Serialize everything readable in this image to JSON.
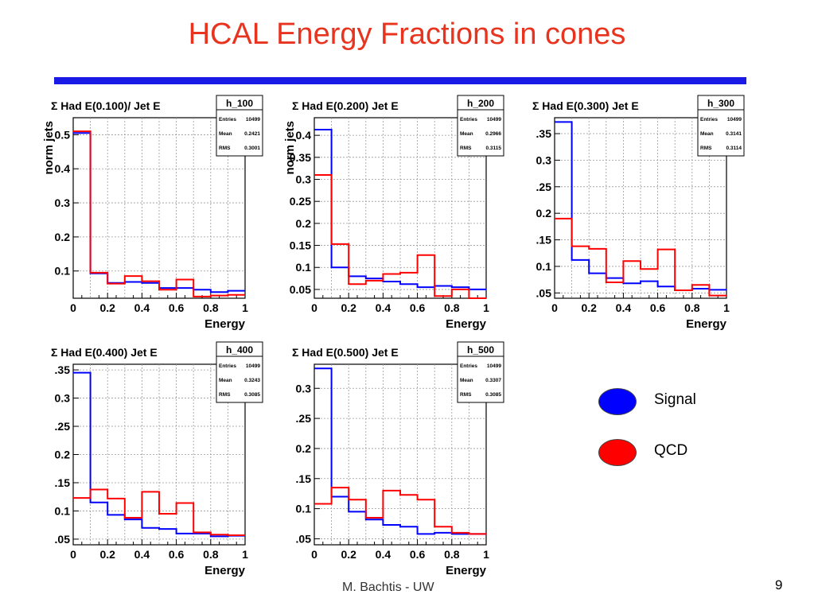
{
  "slide": {
    "title": "HCAL Energy Fractions in cones",
    "footer": "M. Bachtis - UW",
    "page_number": "9"
  },
  "legend": [
    {
      "label": "Signal",
      "color": "#0000ff"
    },
    {
      "label": "QCD",
      "color": "#ff0000"
    }
  ],
  "chart_data": [
    {
      "type": "histogram",
      "title": "Σ Had E(0.100)/ Jet E",
      "stats": {
        "name": "h_100",
        "entries_label": "Entries",
        "entries": "10499",
        "mean_label": "Mean",
        "mean": "0.2421",
        "rms_label": "RMS",
        "rms": "0.3001"
      },
      "xlabel": "Energy",
      "ylabel": "norm jets",
      "xlim": [
        0,
        1
      ],
      "ylim": [
        0.02,
        0.55
      ],
      "xticks": [
        "0",
        "0.2",
        "0.4",
        "0.6",
        "0.8",
        "1"
      ],
      "yticks": [
        {
          "v": 0.1,
          "label": "0.1"
        },
        {
          "v": 0.2,
          "label": "0.2"
        },
        {
          "v": 0.3,
          "label": "0.3"
        },
        {
          "v": 0.4,
          "label": "0.4"
        },
        {
          "v": 0.5,
          "label": "0.5"
        }
      ],
      "bins": [
        0,
        0.1,
        0.2,
        0.3,
        0.4,
        0.5,
        0.6,
        0.7,
        0.8,
        0.9,
        1.0
      ],
      "series": [
        {
          "color": "#0000ff",
          "values": [
            0.505,
            0.093,
            0.065,
            0.068,
            0.065,
            0.05,
            0.05,
            0.045,
            0.038,
            0.042
          ]
        },
        {
          "color": "#ff0000",
          "values": [
            0.51,
            0.095,
            0.063,
            0.085,
            0.07,
            0.045,
            0.075,
            0.025,
            0.028,
            0.03
          ]
        }
      ]
    },
    {
      "type": "histogram",
      "title": "Σ Had E(0.200) Jet E",
      "stats": {
        "name": "h_200",
        "entries_label": "Entries",
        "entries": "10499",
        "mean_label": "Mean",
        "mean": "0.2966",
        "rms_label": "RMS",
        "rms": "0.3115"
      },
      "xlabel": "Energy",
      "ylabel": "norm jets",
      "xlim": [
        0,
        1
      ],
      "ylim": [
        0.03,
        0.44
      ],
      "xticks": [
        "0",
        "0.2",
        "0.4",
        "0.6",
        "0.8",
        "1"
      ],
      "yticks": [
        {
          "v": 0.05,
          "label": "0.05"
        },
        {
          "v": 0.1,
          "label": "0.1"
        },
        {
          "v": 0.15,
          "label": "0.15"
        },
        {
          "v": 0.2,
          "label": "0.2"
        },
        {
          "v": 0.25,
          "label": "0.25"
        },
        {
          "v": 0.3,
          "label": "0.3"
        },
        {
          "v": 0.35,
          "label": "0.35"
        },
        {
          "v": 0.4,
          "label": "0.4"
        }
      ],
      "bins": [
        0,
        0.1,
        0.2,
        0.3,
        0.4,
        0.5,
        0.6,
        0.7,
        0.8,
        0.9,
        1.0
      ],
      "series": [
        {
          "color": "#0000ff",
          "values": [
            0.413,
            0.1,
            0.08,
            0.075,
            0.068,
            0.062,
            0.055,
            0.058,
            0.055,
            0.05
          ]
        },
        {
          "color": "#ff0000",
          "values": [
            0.31,
            0.153,
            0.062,
            0.07,
            0.085,
            0.088,
            0.128,
            0.035,
            0.05,
            0.03
          ]
        }
      ]
    },
    {
      "type": "histogram",
      "title": "Σ Had E(0.300) Jet E",
      "stats": {
        "name": "h_300",
        "entries_label": "Entries",
        "entries": "10499",
        "mean_label": "Mean",
        "mean": "0.3141",
        "rms_label": "RMS",
        "rms": "0.3114"
      },
      "xlabel": "Energy",
      "ylabel": "",
      "xlim": [
        0,
        1
      ],
      "ylim": [
        0.04,
        0.38
      ],
      "xticks": [
        "0",
        "0.2",
        "0.4",
        "0.6",
        "0.8",
        "1"
      ],
      "yticks": [
        {
          "v": 0.05,
          "label": ".05"
        },
        {
          "v": 0.1,
          "label": "0.1"
        },
        {
          "v": 0.15,
          "label": ".15"
        },
        {
          "v": 0.2,
          "label": "0.2"
        },
        {
          "v": 0.25,
          "label": ".25"
        },
        {
          "v": 0.3,
          "label": "0.3"
        },
        {
          "v": 0.35,
          "label": ".35"
        }
      ],
      "bins": [
        0,
        0.1,
        0.2,
        0.3,
        0.4,
        0.5,
        0.6,
        0.7,
        0.8,
        0.9,
        1.0
      ],
      "series": [
        {
          "color": "#0000ff",
          "values": [
            0.372,
            0.112,
            0.087,
            0.078,
            0.068,
            0.072,
            0.062,
            0.055,
            0.058,
            0.056
          ]
        },
        {
          "color": "#ff0000",
          "values": [
            0.19,
            0.138,
            0.133,
            0.07,
            0.11,
            0.095,
            0.132,
            0.055,
            0.065,
            0.045
          ]
        }
      ]
    },
    {
      "type": "histogram",
      "title": "Σ Had E(0.400) Jet E",
      "stats": {
        "name": "h_400",
        "entries_label": "Entries",
        "entries": "10499",
        "mean_label": "Mean",
        "mean": "0.3243",
        "rms_label": "RMS",
        "rms": "0.3085"
      },
      "xlabel": "Energy",
      "ylabel": "",
      "xlim": [
        0,
        1
      ],
      "ylim": [
        0.04,
        0.36
      ],
      "xticks": [
        "0",
        "0.2",
        "0.4",
        "0.6",
        "0.8",
        "1"
      ],
      "yticks": [
        {
          "v": 0.05,
          "label": ".05"
        },
        {
          "v": 0.1,
          "label": "0.1"
        },
        {
          "v": 0.15,
          "label": ".15"
        },
        {
          "v": 0.2,
          "label": "0.2"
        },
        {
          "v": 0.25,
          "label": ".25"
        },
        {
          "v": 0.3,
          "label": "0.3"
        },
        {
          "v": 0.35,
          "label": ".35"
        }
      ],
      "bins": [
        0,
        0.1,
        0.2,
        0.3,
        0.4,
        0.5,
        0.6,
        0.7,
        0.8,
        0.9,
        1.0
      ],
      "series": [
        {
          "color": "#0000ff",
          "values": [
            0.345,
            0.115,
            0.093,
            0.085,
            0.07,
            0.068,
            0.06,
            0.06,
            0.055,
            0.056
          ]
        },
        {
          "color": "#ff0000",
          "values": [
            0.123,
            0.138,
            0.122,
            0.088,
            0.134,
            0.095,
            0.114,
            0.062,
            0.058,
            0.057
          ]
        }
      ]
    },
    {
      "type": "histogram",
      "title": "Σ Had E(0.500) Jet E",
      "stats": {
        "name": "h_500",
        "entries_label": "Entries",
        "entries": "10499",
        "mean_label": "Mean",
        "mean": "0.3307",
        "rms_label": "RMS",
        "rms": "0.3085"
      },
      "xlabel": "Energy",
      "ylabel": "",
      "xlim": [
        0,
        1
      ],
      "ylim": [
        0.04,
        0.34
      ],
      "xticks": [
        "0",
        "0.2",
        "0.4",
        "0.6",
        "0.8",
        "1"
      ],
      "yticks": [
        {
          "v": 0.05,
          "label": ".05"
        },
        {
          "v": 0.1,
          "label": "0.1"
        },
        {
          "v": 0.15,
          "label": ".15"
        },
        {
          "v": 0.2,
          "label": "0.2"
        },
        {
          "v": 0.25,
          "label": ".25"
        },
        {
          "v": 0.3,
          "label": "0.3"
        }
      ],
      "bins": [
        0,
        0.1,
        0.2,
        0.3,
        0.4,
        0.5,
        0.6,
        0.7,
        0.8,
        0.9,
        1.0
      ],
      "series": [
        {
          "color": "#0000ff",
          "values": [
            0.333,
            0.12,
            0.095,
            0.082,
            0.073,
            0.07,
            0.058,
            0.06,
            0.058,
            0.058
          ]
        },
        {
          "color": "#ff0000",
          "values": [
            0.108,
            0.135,
            0.115,
            0.085,
            0.13,
            0.123,
            0.115,
            0.07,
            0.06,
            0.058
          ]
        }
      ]
    }
  ]
}
